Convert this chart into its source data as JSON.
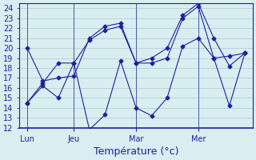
{
  "title": "",
  "xlabel": "Température (°c)",
  "ylabel": "",
  "bg_color": "#d8eef0",
  "line_color": "#2020a0",
  "grid_color": "#aacccc",
  "ylim": [
    12,
    24.5
  ],
  "yticks": [
    12,
    13,
    14,
    15,
    16,
    17,
    18,
    19,
    20,
    21,
    22,
    23,
    24
  ],
  "day_labels": [
    "Lun",
    "Jeu",
    "Mar",
    "Mer"
  ],
  "day_positions": [
    0,
    3,
    7,
    11
  ],
  "line1_x": [
    0,
    1,
    2,
    3,
    4,
    5,
    6,
    7,
    8,
    9,
    10,
    11,
    12,
    13,
    14
  ],
  "line1_y": [
    14.5,
    16.2,
    15.0,
    18.5,
    11.8,
    13.3,
    18.7,
    14.0,
    13.2,
    15.0,
    20.2,
    21.0,
    19.0,
    14.2,
    19.5
  ],
  "line2_x": [
    0,
    1,
    2,
    3,
    4,
    5,
    6,
    7,
    8,
    9,
    10,
    11,
    12,
    13,
    14
  ],
  "line2_y": [
    14.5,
    16.5,
    18.5,
    18.5,
    20.8,
    21.8,
    22.2,
    18.5,
    18.5,
    19.0,
    23.0,
    24.2,
    19.0,
    19.2,
    19.5
  ],
  "line3_x": [
    0,
    1,
    2,
    3,
    4,
    5,
    6,
    7,
    8,
    9,
    10,
    11,
    12,
    13,
    14
  ],
  "line3_y": [
    20.0,
    16.7,
    17.0,
    17.2,
    21.0,
    22.2,
    22.5,
    18.5,
    19.0,
    20.0,
    23.3,
    24.5,
    21.0,
    18.2,
    19.5
  ],
  "tick_label_size": 7,
  "xlabel_size": 9
}
